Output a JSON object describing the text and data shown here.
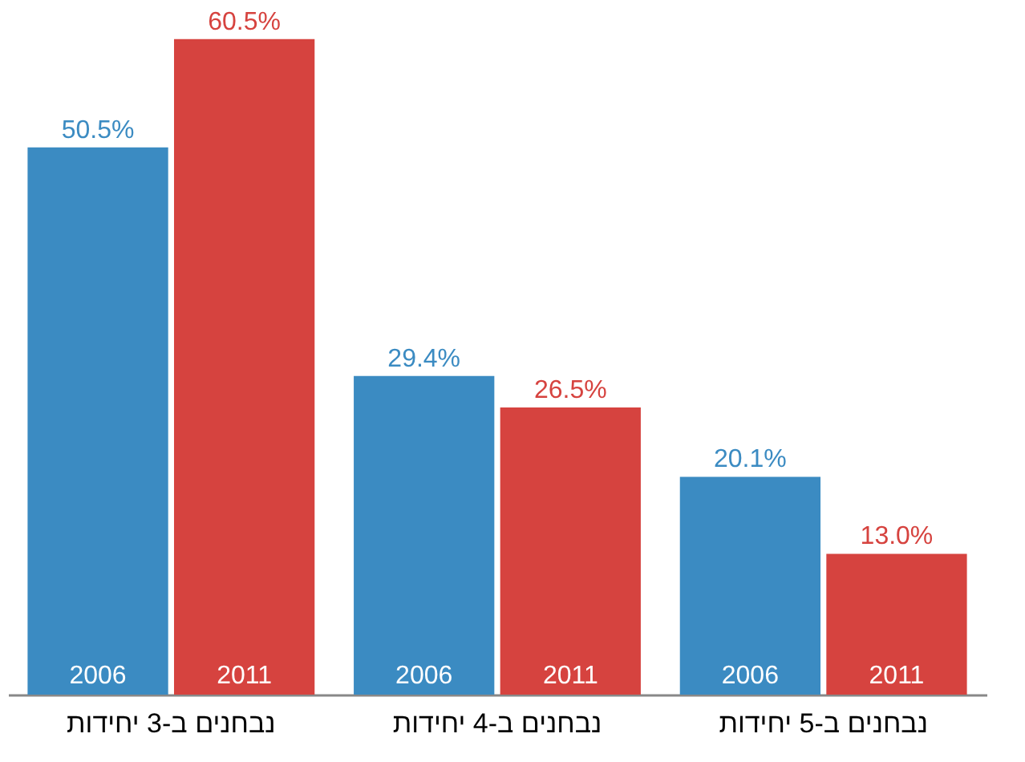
{
  "chart_data": {
    "type": "bar",
    "categories": [
      "נבחנים ב-3 יחידות",
      "נבחנים ב-4 יחידות",
      "נבחנים ב-5 יחידות"
    ],
    "series": [
      {
        "name": "2006",
        "color": "#3b8bc2",
        "values": [
          50.5,
          29.4,
          20.1
        ],
        "value_labels": [
          "50.5%",
          "29.4%",
          "20.1%"
        ]
      },
      {
        "name": "2011",
        "color": "#d6433f",
        "values": [
          60.5,
          26.5,
          13.0
        ],
        "value_labels": [
          "60.5%",
          "26.5%",
          "13.0%"
        ]
      }
    ],
    "legend": false,
    "grid": false
  }
}
